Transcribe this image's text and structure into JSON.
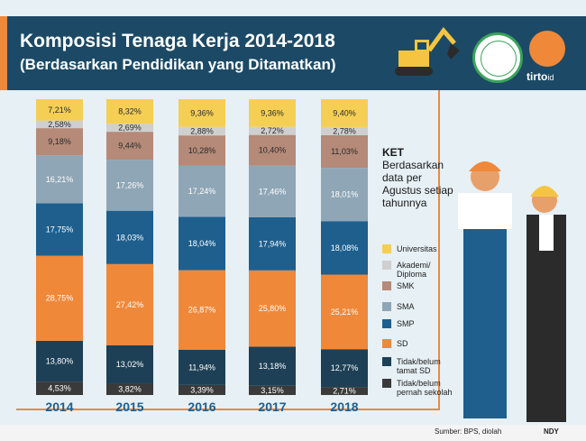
{
  "header": {
    "title": "Komposisi Tenaga Kerja 2014-2018",
    "subtitle": "(Berdasarkan Pendidikan yang Ditamatkan)",
    "brand": "tirto",
    "brand_suffix": "id"
  },
  "ket": {
    "title": "KET",
    "note": "Berdasarkan data per Agustus setiap tahunnya"
  },
  "footer": {
    "source": "Sumber: BPS, diolah",
    "author": "NDY"
  },
  "colors": {
    "header_bg": "#1c4a66",
    "accent": "#f0883a"
  },
  "chart_data": {
    "type": "bar",
    "stacked": true,
    "categories": [
      "2014",
      "2015",
      "2016",
      "2017",
      "2018"
    ],
    "series": [
      {
        "name": "Tidak/belum pernah sekolah",
        "color": "#3a3a3a",
        "values": [
          4.53,
          3.82,
          3.39,
          3.15,
          2.71
        ],
        "labels": [
          "4,53%",
          "3,82%",
          "3,39%",
          "3,15%",
          "2,71%"
        ]
      },
      {
        "name": "Tidak/belum tamat SD",
        "color": "#1d4056",
        "values": [
          13.8,
          13.02,
          11.94,
          13.18,
          12.77
        ],
        "labels": [
          "13,80%",
          "13,02%",
          "11,94%",
          "13,18%",
          "12,77%"
        ]
      },
      {
        "name": "SD",
        "color": "#f0883a",
        "values": [
          28.75,
          27.42,
          26.87,
          25.8,
          25.21
        ],
        "labels": [
          "28,75%",
          "27,42%",
          "26,87%",
          "25,80%",
          "25,21%"
        ]
      },
      {
        "name": "SMP",
        "color": "#1e5f8e",
        "values": [
          17.75,
          18.03,
          18.04,
          17.94,
          18.08
        ],
        "labels": [
          "17,75%",
          "18,03%",
          "18,04%",
          "17,94%",
          "18,08%"
        ]
      },
      {
        "name": "SMA",
        "color": "#8fa6b6",
        "values": [
          16.21,
          17.26,
          17.24,
          17.46,
          18.01
        ],
        "labels": [
          "16,21%",
          "17,26%",
          "17,24%",
          "17,46%",
          "18,01%"
        ]
      },
      {
        "name": "SMK",
        "color": "#b58a78",
        "values": [
          9.18,
          9.44,
          10.28,
          10.4,
          11.03
        ],
        "labels": [
          "9,18%",
          "9,44%",
          "10,28%",
          "10,40%",
          "11,03%"
        ]
      },
      {
        "name": "Akademi/ Diploma",
        "color": "#cfcfcf",
        "values": [
          2.58,
          2.69,
          2.88,
          2.72,
          2.78
        ],
        "labels": [
          "2,58%",
          "2,69%",
          "2,88%",
          "2,72%",
          "2,78%"
        ]
      },
      {
        "name": "Universitas",
        "color": "#f5cf54",
        "values": [
          7.21,
          8.32,
          9.36,
          9.36,
          9.4
        ],
        "labels": [
          "7,21%",
          "8,32%",
          "9,36%",
          "9,36%",
          "9,40%"
        ]
      }
    ],
    "legend": [
      {
        "name": "Universitas",
        "color": "#f5cf54"
      },
      {
        "name": "Akademi/ Diploma",
        "color": "#cfcfcf"
      },
      {
        "name": "SMK",
        "color": "#b58a78"
      },
      {
        "name": "SMA",
        "color": "#8fa6b6"
      },
      {
        "name": "SMP",
        "color": "#1e5f8e"
      },
      {
        "name": "SD",
        "color": "#f0883a"
      },
      {
        "name": "Tidak/belum tamat SD",
        "color": "#1d4056"
      },
      {
        "name": "Tidak/belum pernah sekolah",
        "color": "#3a3a3a"
      }
    ],
    "ylim": [
      0,
      100
    ],
    "grid": false
  }
}
